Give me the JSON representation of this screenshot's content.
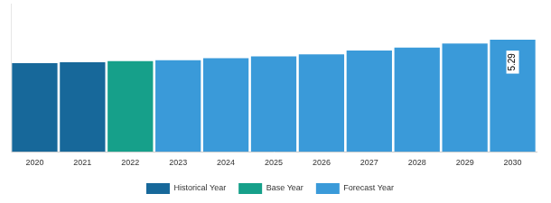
{
  "chart_data": {
    "type": "bar",
    "categories": [
      "2020",
      "2021",
      "2022",
      "2023",
      "2024",
      "2025",
      "2026",
      "2027",
      "2028",
      "2029",
      "2030"
    ],
    "series": [
      {
        "name": "Historical Year",
        "color": "#17689a",
        "values": [
          4.19,
          4.23,
          null,
          null,
          null,
          null,
          null,
          null,
          null,
          null,
          null
        ]
      },
      {
        "name": "Base Year",
        "color": "#16a08a",
        "values": [
          null,
          null,
          4.28,
          null,
          null,
          null,
          null,
          null,
          null,
          null,
          null
        ]
      },
      {
        "name": "Forecast Year",
        "color": "#3a9ad9",
        "values": [
          null,
          null,
          null,
          4.33,
          4.42,
          4.51,
          4.6,
          4.78,
          4.92,
          5.11,
          5.29
        ],
        "value_labels": [
          null,
          null,
          null,
          null,
          null,
          null,
          null,
          null,
          null,
          null,
          "5.29"
        ]
      }
    ],
    "stacked": true,
    "ylim": [
      0,
      7
    ],
    "tick_labels": "x",
    "grid": false,
    "legend": "bottom",
    "data_labels": true
  }
}
